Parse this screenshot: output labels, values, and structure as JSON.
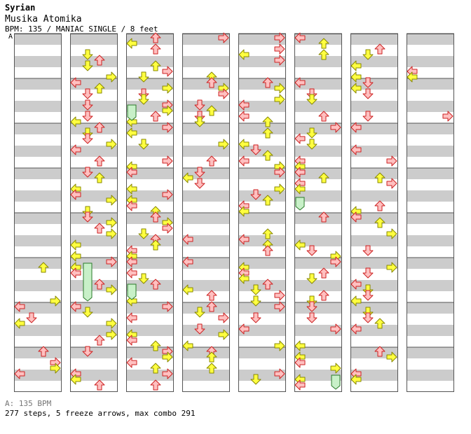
{
  "header": {
    "artist": "Syrian",
    "title": "Musika Atomika",
    "meta": "BPM: 135 / MANIAC SINGLE / 8 feet",
    "marker": "A"
  },
  "footer": {
    "bpm_note": "A: 135 BPM",
    "summary": "277 steps, 5 freeze arrows, max combo 291"
  },
  "colors": {
    "stripe": "#cccccc",
    "red_arrow_fill": "#ffc0c0",
    "red_arrow_stroke": "#cc2222",
    "yellow_arrow_fill": "#ffff40",
    "yellow_arrow_stroke": "#888800",
    "freeze_fill": "#c8f0c8",
    "freeze_stroke": "#2a7a2a",
    "border": "#555555"
  },
  "chart_data": {
    "type": "table",
    "columns": 8,
    "measures_per_column": 8,
    "lanes": [
      "left",
      "down",
      "up",
      "right"
    ],
    "counts": {
      "steps": 277,
      "freeze_arrows": 5,
      "max_combo": 291
    }
  }
}
